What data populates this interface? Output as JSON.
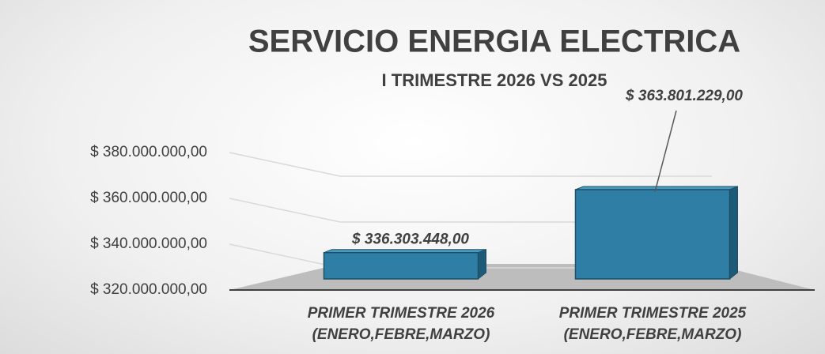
{
  "chart_data": {
    "type": "bar",
    "title": "SERVICIO ENERGIA ELECTRICA",
    "subtitle": "I TRIMESTRE 2026 VS 2025",
    "categories": [
      "PRIMER TRIMESTRE  2026\n(ENERO,FEBRE,MARZO)",
      "PRIMER TRIMESTRE  2025\n(ENERO,FEBRE,MARZO)"
    ],
    "values": [
      336303448,
      363801229
    ],
    "value_labels": [
      "$ 336.303.448,00",
      "$ 363.801.229,00"
    ],
    "color": "#2e7ea6",
    "ylim": [
      320000000,
      380000000
    ],
    "yticks": [
      {
        "value": 320000000,
        "label": "$ 320.000.000,00"
      },
      {
        "value": 340000000,
        "label": "$ 340.000.000,00"
      },
      {
        "value": 360000000,
        "label": "$ 360.000.000,00"
      },
      {
        "value": 380000000,
        "label": "$ 380.000.000,00"
      }
    ],
    "grid": true
  }
}
